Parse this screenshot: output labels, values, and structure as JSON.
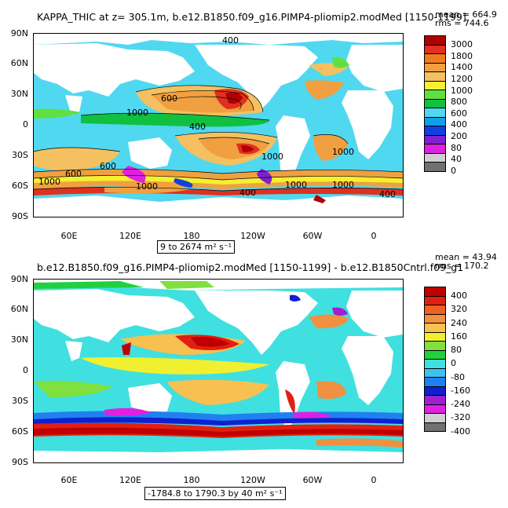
{
  "top": {
    "title": "KAPPA_THIC at z= 305.1m, b.e12.B1850.f09_g16.PIMP4-pliomip2.modMed [1150-1199]",
    "mean": "mean = 664.9",
    "rms": "rms = 744.6",
    "range": "9 to 2674 m² s⁻¹",
    "colorbar_labels": [
      "3000",
      "1800",
      "1400",
      "1200",
      "1000",
      "800",
      "600",
      "400",
      "200",
      "80",
      "40",
      "0"
    ],
    "colorbar_colors": [
      "#b00000",
      "#e03020",
      "#f07a20",
      "#f0a040",
      "#f5c060",
      "#f5f030",
      "#60e040",
      "#10c040",
      "#50d8f0",
      "#10a0e8",
      "#1040e0",
      "#8020d0",
      "#e020e0",
      "#d0d0d0",
      "#707070"
    ],
    "contour_labels": [
      "400",
      "600",
      "1000",
      "400",
      "600",
      "1000",
      "1000",
      "1000",
      "400",
      "1000",
      "600",
      "1000",
      "1000",
      "400"
    ]
  },
  "bottom": {
    "title": "b.e12.B1850.f09_g16.PIMP4-pliomip2.modMed [1150-1199] - b.e12.B1850Cntrl.f09_g1",
    "mean": "mean = 43.94",
    "rms": "rms = 170.2",
    "range": "-1784.8 to 1790.3 by 40 m² s⁻¹",
    "colorbar_labels": [
      "400",
      "320",
      "240",
      "160",
      "80",
      "0",
      "-80",
      "-160",
      "-240",
      "-320",
      "-400"
    ],
    "colorbar_colors": [
      "#c00000",
      "#e02010",
      "#f06020",
      "#f09040",
      "#f8c050",
      "#f0f030",
      "#80e040",
      "#20d040",
      "#40e0e0",
      "#40c0f0",
      "#2080f0",
      "#1020d0",
      "#a020d0",
      "#e020e0",
      "#d0d0d0",
      "#707070"
    ]
  },
  "axes": {
    "lat_labels": [
      "90N",
      "60N",
      "30N",
      "0",
      "30S",
      "60S",
      "90S"
    ],
    "lon_labels": [
      "60E",
      "120E",
      "180",
      "120W",
      "60W",
      "0"
    ]
  }
}
